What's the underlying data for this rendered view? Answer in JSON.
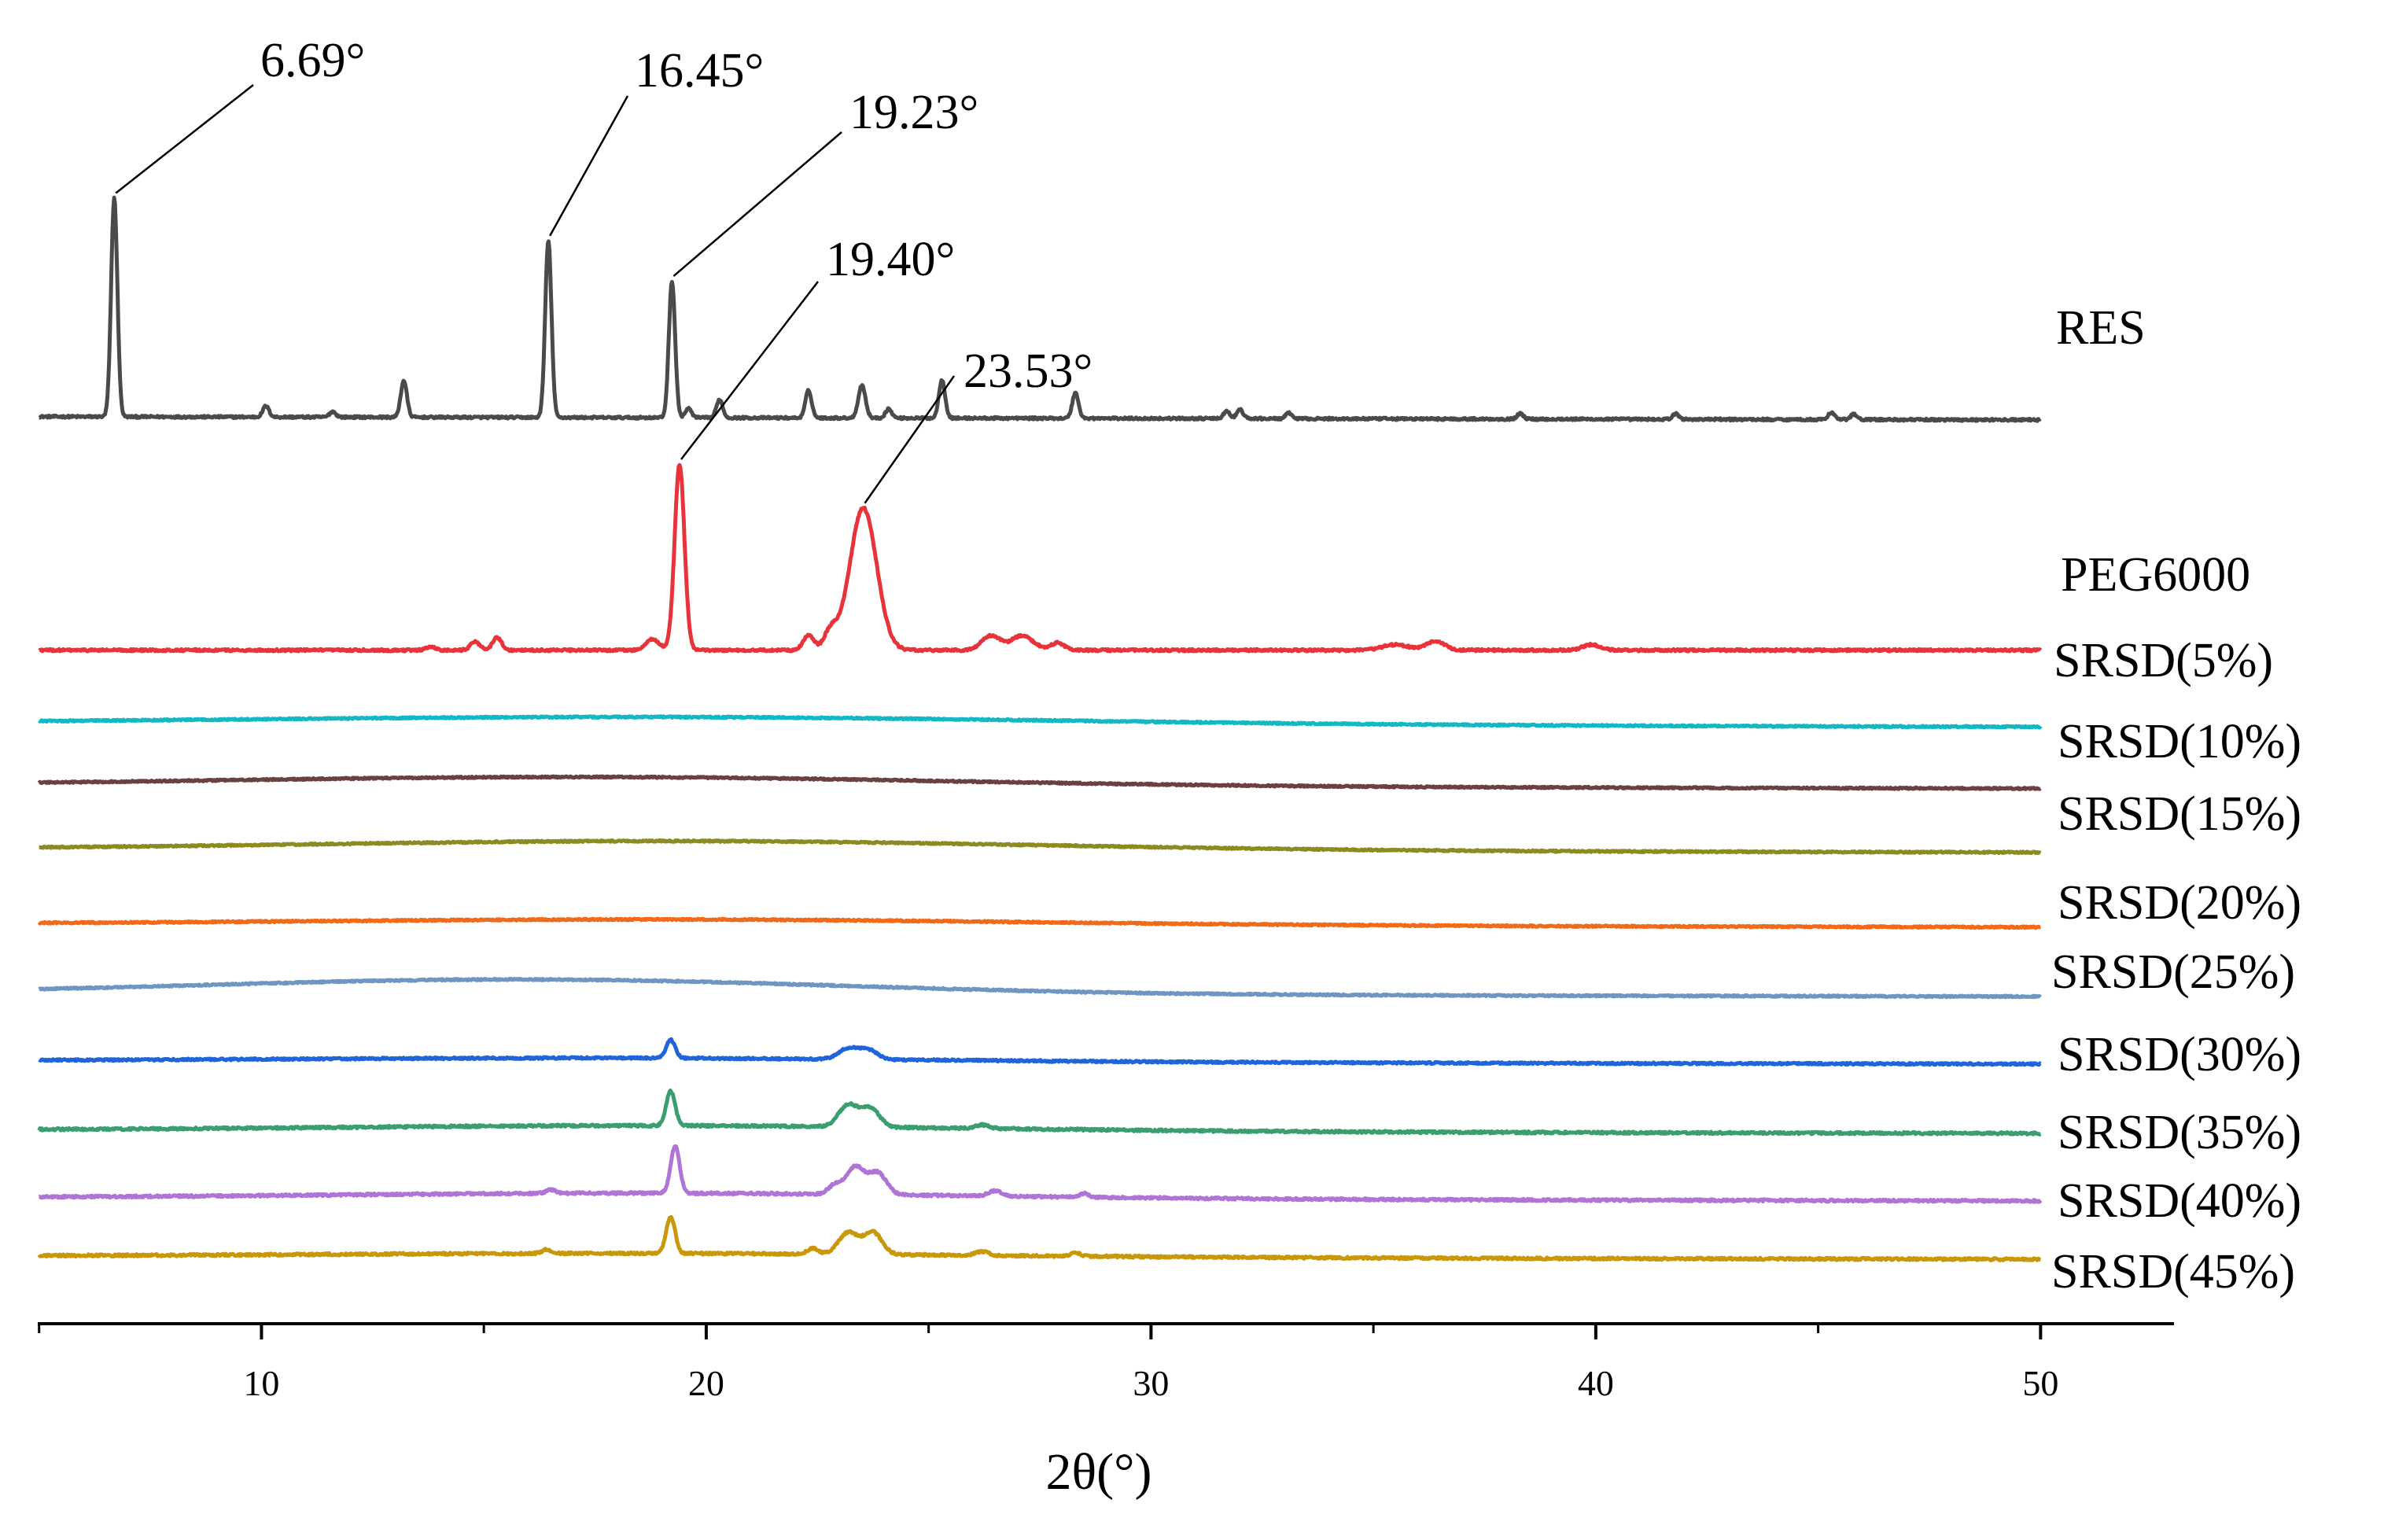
{
  "chart_data": {
    "type": "line",
    "title": "",
    "xlabel": "2θ(°)",
    "ylabel": "",
    "xlim": [
      4.97,
      53
    ],
    "x_ticks": [
      10,
      20,
      30,
      40,
      50
    ],
    "x_tick_labels": [
      "10",
      "20",
      "30",
      "40",
      "50"
    ],
    "x_minor_ticks": [
      5,
      15,
      25,
      35,
      45
    ],
    "grid": false,
    "layout": "stacked-offset",
    "series": [
      {
        "name": "RES",
        "color": "#4a4a4a",
        "baseline_offset": 2.04,
        "slope": -0.0004,
        "noise": 0.006,
        "amorphous_hump": null,
        "peaks": [
          {
            "x": 6.69,
            "h": 1.2,
            "w": 0.07
          },
          {
            "x": 10.1,
            "h": 0.06,
            "w": 0.07
          },
          {
            "x": 11.6,
            "h": 0.03,
            "w": 0.07
          },
          {
            "x": 13.2,
            "h": 0.2,
            "w": 0.07
          },
          {
            "x": 16.45,
            "h": 0.97,
            "w": 0.07
          },
          {
            "x": 19.23,
            "h": 0.75,
            "w": 0.07
          },
          {
            "x": 19.6,
            "h": 0.05,
            "w": 0.07
          },
          {
            "x": 20.3,
            "h": 0.1,
            "w": 0.07
          },
          {
            "x": 22.3,
            "h": 0.15,
            "w": 0.07
          },
          {
            "x": 23.5,
            "h": 0.18,
            "w": 0.08
          },
          {
            "x": 24.1,
            "h": 0.05,
            "w": 0.07
          },
          {
            "x": 25.3,
            "h": 0.21,
            "w": 0.07
          },
          {
            "x": 28.3,
            "h": 0.14,
            "w": 0.07
          },
          {
            "x": 31.7,
            "h": 0.04,
            "w": 0.07
          },
          {
            "x": 32.0,
            "h": 0.05,
            "w": 0.07
          },
          {
            "x": 33.1,
            "h": 0.03,
            "w": 0.07
          },
          {
            "x": 38.3,
            "h": 0.03,
            "w": 0.07
          },
          {
            "x": 41.8,
            "h": 0.03,
            "w": 0.07
          },
          {
            "x": 45.3,
            "h": 0.04,
            "w": 0.07
          },
          {
            "x": 45.8,
            "h": 0.03,
            "w": 0.07
          }
        ],
        "annotations": [
          {
            "text": "6.69°",
            "peak_x": 6.69
          },
          {
            "text": "16.45°",
            "peak_x": 16.45
          },
          {
            "text": "19.23°",
            "peak_x": 19.23
          }
        ]
      },
      {
        "name": "PEG6000",
        "color": "#e8333a",
        "baseline_offset": 0.76,
        "slope": 0,
        "noise": 0.006,
        "amorphous_hump": null,
        "peaks": [
          {
            "x": 13.8,
            "h": 0.02,
            "w": 0.1
          },
          {
            "x": 14.8,
            "h": 0.05,
            "w": 0.1
          },
          {
            "x": 15.3,
            "h": 0.07,
            "w": 0.1
          },
          {
            "x": 18.8,
            "h": 0.06,
            "w": 0.15
          },
          {
            "x": 19.4,
            "h": 1.02,
            "w": 0.11
          },
          {
            "x": 22.3,
            "h": 0.08,
            "w": 0.12
          },
          {
            "x": 22.8,
            "h": 0.1,
            "w": 0.15
          },
          {
            "x": 23.53,
            "h": 0.78,
            "w": 0.3
          },
          {
            "x": 26.4,
            "h": 0.08,
            "w": 0.2
          },
          {
            "x": 27.1,
            "h": 0.08,
            "w": 0.25
          },
          {
            "x": 27.9,
            "h": 0.04,
            "w": 0.15
          },
          {
            "x": 35.5,
            "h": 0.03,
            "w": 0.3
          },
          {
            "x": 36.4,
            "h": 0.05,
            "w": 0.2
          },
          {
            "x": 39.9,
            "h": 0.03,
            "w": 0.2
          }
        ],
        "annotations": [
          {
            "text": "19.40°",
            "peak_x": 19.4
          },
          {
            "text": "23.53°",
            "peak_x": 23.53
          }
        ]
      },
      {
        "name": "SRSD(5%)",
        "color": "#12b9c4",
        "baseline_offset": 0.36,
        "slope": -0.00045,
        "noise": 0.004,
        "amorphous_hump": {
          "x": 19,
          "h": 0.04,
          "w": 9
        },
        "peaks": [],
        "annotations": []
      },
      {
        "name": "SRSD(10%)",
        "color": "#6b4040",
        "baseline_offset": 0.02,
        "slope": -0.0004,
        "noise": 0.004,
        "amorphous_hump": {
          "x": 17.5,
          "h": 0.05,
          "w": 8
        },
        "peaks": [],
        "annotations": []
      },
      {
        "name": "SRSD(15%)",
        "color": "#8b8b22",
        "baseline_offset": -0.33,
        "slope": -0.0004,
        "noise": 0.004,
        "amorphous_hump": {
          "x": 19.5,
          "h": 0.05,
          "w": 8
        },
        "peaks": [],
        "annotations": []
      },
      {
        "name": "SRSD(20%)",
        "color": "#f06a1a",
        "baseline_offset": -0.74,
        "slope": -0.0004,
        "noise": 0.004,
        "amorphous_hump": {
          "x": 19.5,
          "h": 0.03,
          "w": 8
        },
        "peaks": [],
        "annotations": []
      },
      {
        "name": "SRSD(25%)",
        "color": "#6f96c3",
        "baseline_offset": -1.12,
        "slope": -0.0004,
        "noise": 0.004,
        "amorphous_hump": {
          "x": 16,
          "h": 0.08,
          "w": 7
        },
        "peaks": [],
        "annotations": []
      },
      {
        "name": "SRSD(30%)",
        "color": "#1f64d8",
        "baseline_offset": -1.49,
        "slope": -0.0004,
        "noise": 0.005,
        "amorphous_hump": {
          "x": 18,
          "h": 0.02,
          "w": 7
        },
        "peaks": [
          {
            "x": 19.2,
            "h": 0.1,
            "w": 0.1
          },
          {
            "x": 23.2,
            "h": 0.06,
            "w": 0.22
          },
          {
            "x": 23.65,
            "h": 0.05,
            "w": 0.2
          }
        ],
        "annotations": []
      },
      {
        "name": "SRSD(35%)",
        "color": "#3a9e6e",
        "baseline_offset": -1.87,
        "slope": -0.0004,
        "noise": 0.006,
        "amorphous_hump": {
          "x": 19,
          "h": 0.03,
          "w": 7
        },
        "peaks": [
          {
            "x": 19.2,
            "h": 0.19,
            "w": 0.1
          },
          {
            "x": 23.2,
            "h": 0.12,
            "w": 0.22
          },
          {
            "x": 23.7,
            "h": 0.1,
            "w": 0.2
          },
          {
            "x": 26.2,
            "h": 0.02,
            "w": 0.15
          }
        ],
        "annotations": []
      },
      {
        "name": "SRSD(40%)",
        "color": "#b074d6",
        "baseline_offset": -2.24,
        "slope": -0.0004,
        "noise": 0.006,
        "amorphous_hump": {
          "x": 19,
          "h": 0.03,
          "w": 7
        },
        "peaks": [
          {
            "x": 16.5,
            "h": 0.02,
            "w": 0.1
          },
          {
            "x": 19.3,
            "h": 0.26,
            "w": 0.1
          },
          {
            "x": 22.9,
            "h": 0.05,
            "w": 0.15
          },
          {
            "x": 23.35,
            "h": 0.15,
            "w": 0.2
          },
          {
            "x": 23.85,
            "h": 0.12,
            "w": 0.2
          },
          {
            "x": 26.5,
            "h": 0.03,
            "w": 0.15
          },
          {
            "x": 28.5,
            "h": 0.02,
            "w": 0.1
          }
        ],
        "annotations": []
      },
      {
        "name": "SRSD(45%)",
        "color": "#c9980a",
        "baseline_offset": -2.56,
        "slope": -0.0004,
        "noise": 0.006,
        "amorphous_hump": {
          "x": 19,
          "h": 0.02,
          "w": 7
        },
        "peaks": [
          {
            "x": 16.4,
            "h": 0.02,
            "w": 0.1
          },
          {
            "x": 19.2,
            "h": 0.2,
            "w": 0.1
          },
          {
            "x": 22.4,
            "h": 0.03,
            "w": 0.12
          },
          {
            "x": 23.2,
            "h": 0.12,
            "w": 0.22
          },
          {
            "x": 23.75,
            "h": 0.12,
            "w": 0.2
          },
          {
            "x": 26.2,
            "h": 0.02,
            "w": 0.15
          },
          {
            "x": 28.3,
            "h": 0.02,
            "w": 0.1
          }
        ],
        "annotations": []
      }
    ]
  }
}
